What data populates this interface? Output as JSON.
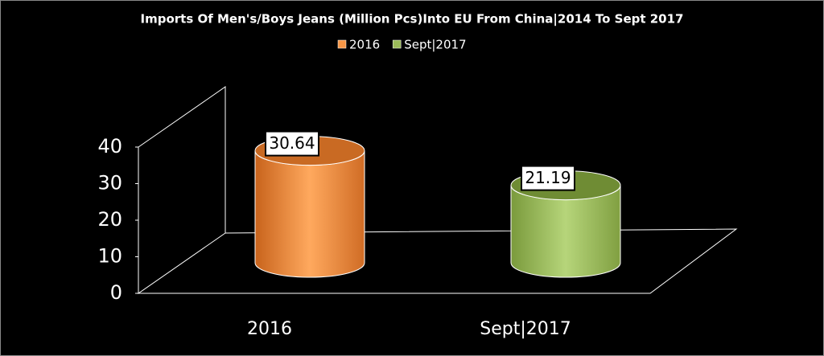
{
  "chart_data": {
    "type": "cylinder",
    "title": "Imports Of Men's/Boys Jeans (Million Pcs)Into EU From China|2014 To Sept 2017",
    "categories": [
      "2016",
      "Sept|2017"
    ],
    "series": [
      {
        "name": "2016",
        "color": "#f79646",
        "values": [
          30.64,
          null
        ]
      },
      {
        "name": "Sept|2017",
        "color": "#9bbb59",
        "values": [
          null,
          21.19
        ]
      }
    ],
    "ylim": [
      0,
      40
    ],
    "yticks": [
      0,
      10,
      20,
      30,
      40
    ]
  }
}
